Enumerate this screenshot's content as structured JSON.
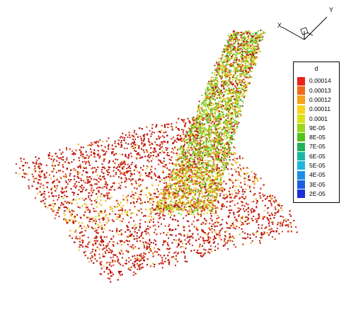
{
  "legend": {
    "title": "d",
    "entries": [
      {
        "label": "0.00014",
        "color": "#e8231c"
      },
      {
        "label": "0.00013",
        "color": "#f06a1a"
      },
      {
        "label": "0.00012",
        "color": "#f6a21a"
      },
      {
        "label": "0.00011",
        "color": "#f8d51c"
      },
      {
        "label": "0.0001",
        "color": "#d7e21d"
      },
      {
        "label": "9E-05",
        "color": "#9cd61c"
      },
      {
        "label": "8E-05",
        "color": "#54c31c"
      },
      {
        "label": "7E-05",
        "color": "#1fb35a"
      },
      {
        "label": "6E-05",
        "color": "#1cb6a4"
      },
      {
        "label": "5E-05",
        "color": "#1fb6dc"
      },
      {
        "label": "4E-05",
        "color": "#1a8fe4"
      },
      {
        "label": "3E-05",
        "color": "#1a5fe0"
      },
      {
        "label": "2E-05",
        "color": "#1a30d6"
      }
    ]
  },
  "axes": {
    "x_label": "X",
    "y_label": "Y"
  },
  "colors": {
    "dominant": "#d42a14",
    "mid": "#e8c21d",
    "low": "#5cc21c"
  }
}
